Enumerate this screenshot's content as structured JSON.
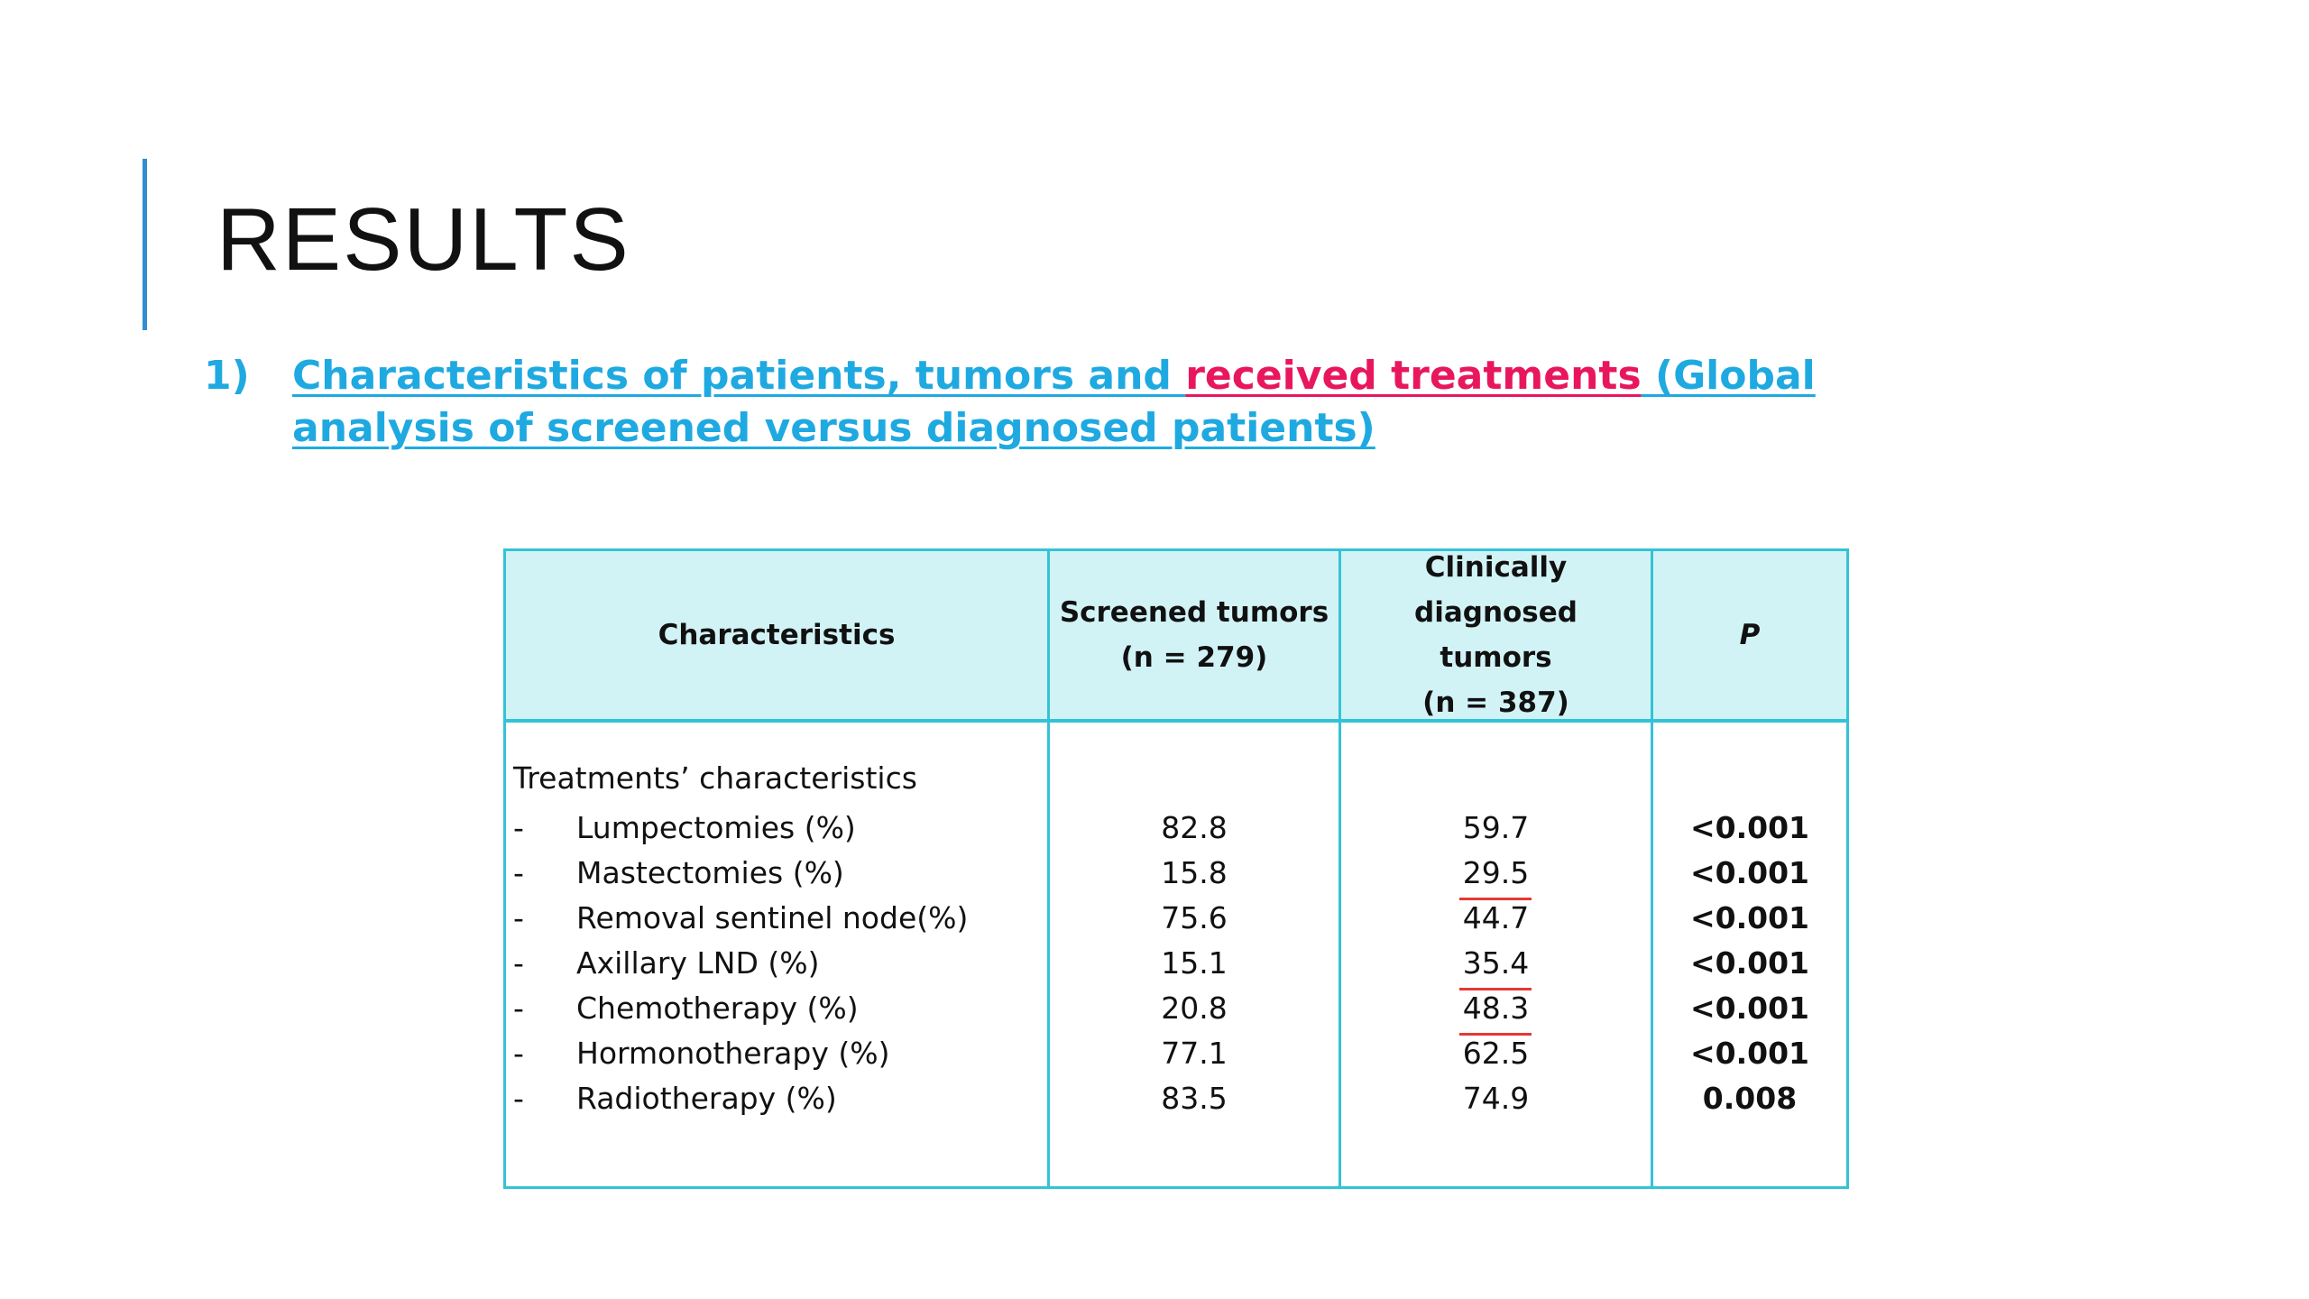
{
  "slide": {
    "title": "RESULTS",
    "subtitle": {
      "number": "1)",
      "text_part1": "Characteristics of patients, tumors and ",
      "text_highlight": "received treatments",
      "text_part2": " (Global analysis of screened versus diagnosed patients)"
    }
  },
  "table": {
    "headers": {
      "characteristics": "Characteristics",
      "screened": "Screened tumors\n(n = 279)",
      "clinical": "Clinically diagnosed\ntumors\n(n = 387)",
      "p": "P"
    },
    "section_label": "Treatments’ characteristics",
    "rows": [
      {
        "dash": "-",
        "label": "Lumpectomies (%)",
        "screened": "82.8",
        "clinical": "59.7",
        "p": "<0.001"
      },
      {
        "dash": "-",
        "label": "Mastectomies (%)",
        "screened": "15.8",
        "clinical": "29.5",
        "p": "<0.001"
      },
      {
        "dash": "-",
        "label": "Removal sentinel node(%)",
        "screened": "75.6",
        "clinical": "44.7",
        "p": "<0.001"
      },
      {
        "dash": "-",
        "label": "Axillary LND (%)",
        "screened": "15.1",
        "clinical": "35.4",
        "p": "<0.001"
      },
      {
        "dash": "-",
        "label": "Chemotherapy (%)",
        "screened": "20.8",
        "clinical": "48.3",
        "p": "<0.001"
      },
      {
        "dash": "-",
        "label": "Hormonotherapy (%)",
        "screened": "77.1",
        "clinical": "62.5",
        "p": "<0.001"
      },
      {
        "dash": "-",
        "label": "Radiotherapy (%)",
        "screened": "83.5",
        "clinical": "74.9",
        "p": "0.008"
      }
    ]
  },
  "colors": {
    "accent_bar": "#2f8fd0",
    "subtitle": "#1fa9e1",
    "highlight": "#e8175d",
    "table_border": "#33c3d6",
    "header_fill": "#d2f3f6",
    "annotation_mark": "#e53935"
  }
}
